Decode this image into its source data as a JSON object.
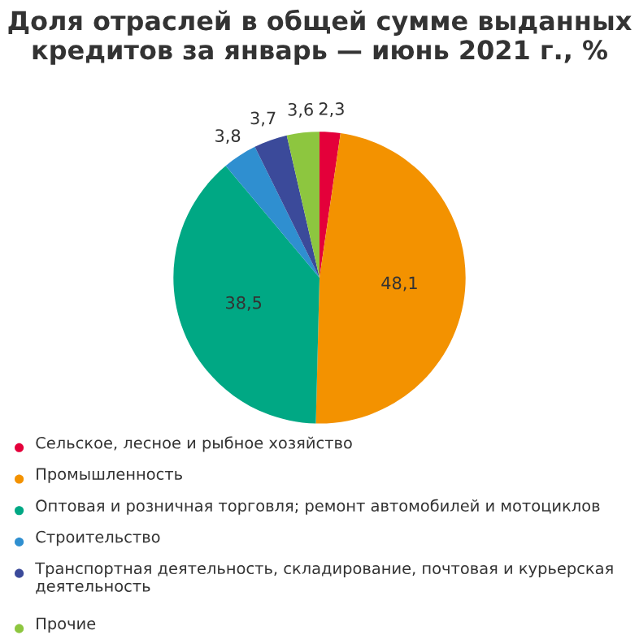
{
  "chart_data": {
    "type": "pie",
    "title": "Доля отраслей в общей сумме выданных кредитов за январь — июнь 2021 г., %",
    "categories": [
      "Сельское, лесное и рыбное хозяйство",
      "Промышленность",
      "Оптовая и розничная торговля; ремонт автомобилей и мотоциклов",
      "Строительство",
      "Транспортная деятельность, складирование, почтовая и курьерская деятельность",
      "Прочие"
    ],
    "values": [
      2.3,
      48.1,
      38.5,
      3.8,
      3.7,
      3.6
    ],
    "colors": [
      "#e4003a",
      "#f39200",
      "#00a884",
      "#2f8fd0",
      "#3b4a9a",
      "#8dc63f"
    ],
    "value_labels": [
      "2,3",
      "48,1",
      "38,5",
      "3,8",
      "3,7",
      "3,6"
    ],
    "legend": "bottom"
  }
}
